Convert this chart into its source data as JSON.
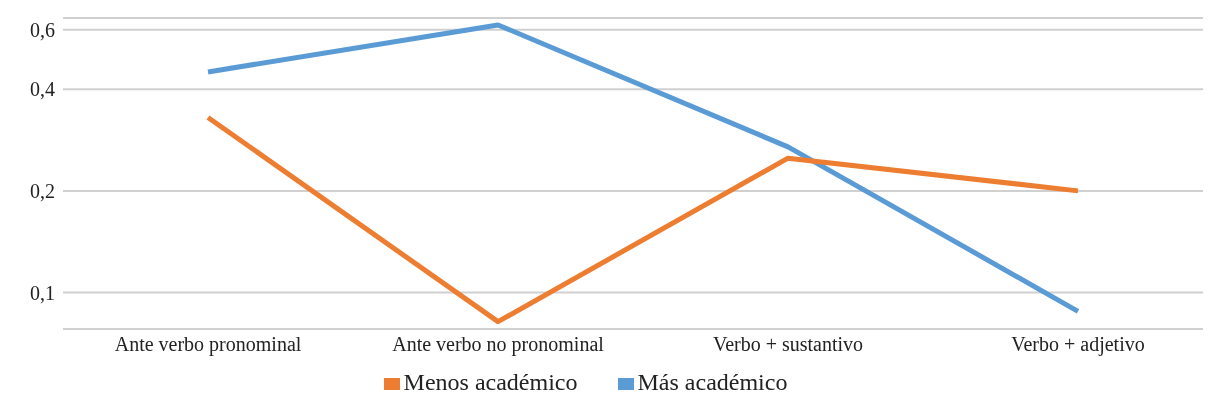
{
  "chart_data": {
    "type": "line",
    "categories": [
      "Ante verbo pronominal",
      "Ante verbo no pronominal",
      "Verbo + sustantivo",
      "Verbo + adjetivo"
    ],
    "series": [
      {
        "name": "Más académico",
        "color": "#5b9bd5",
        "values": [
          0.45,
          0.62,
          0.27,
          0.088
        ]
      },
      {
        "name": "Menos académico",
        "color": "#ed7d31",
        "values": [
          0.33,
          0.082,
          0.25,
          0.2
        ]
      }
    ],
    "log": true,
    "ylim": [
      0.078,
      0.65
    ],
    "yticks": [
      {
        "value": 0.1,
        "label": "0,1"
      },
      {
        "value": 0.2,
        "label": "0,2"
      },
      {
        "value": 0.4,
        "label": "0,4"
      },
      {
        "value": 0.6,
        "label": "0,6"
      }
    ],
    "grid": "y",
    "legend": "bottom",
    "marker": "none",
    "line_style": "solid"
  }
}
